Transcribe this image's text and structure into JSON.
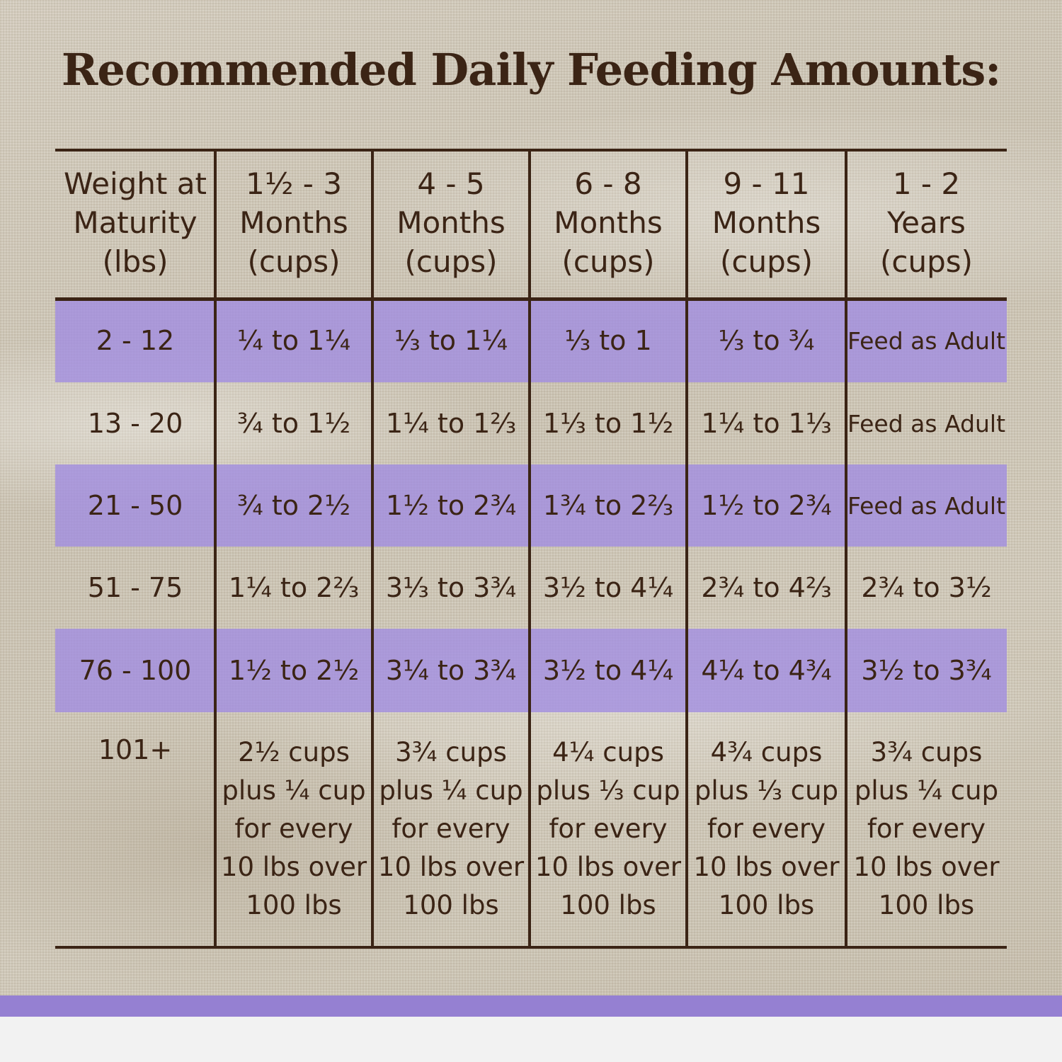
{
  "title": "Recommended Daily Feeding Amounts:",
  "chart_data": {
    "type": "table",
    "columns": [
      "Weight at\nMaturity\n(lbs)",
      "1½ - 3\nMonths\n(cups)",
      "4 - 5\nMonths\n(cups)",
      "6 - 8\nMonths\n(cups)",
      "9 - 11\nMonths\n(cups)",
      "1 - 2\nYears\n(cups)"
    ],
    "rows": [
      [
        "2 - 12",
        "¼ to 1¼",
        "⅓ to 1¼",
        "⅓ to 1",
        "⅓ to ¾",
        "Feed as Adult"
      ],
      [
        "13 - 20",
        "¾ to 1½",
        "1¼ to 1⅔",
        "1⅓ to 1½",
        "1¼ to 1⅓",
        "Feed as Adult"
      ],
      [
        "21 - 50",
        "¾ to 2½",
        "1½ to 2¾",
        "1¾ to 2⅔",
        "1½ to 2¾",
        "Feed as Adult"
      ],
      [
        "51 - 75",
        "1¼ to 2⅔",
        "3⅓ to 3¾",
        "3½ to 4¼",
        "2¾ to 4⅔",
        "2¾ to 3½"
      ],
      [
        "76 - 100",
        "1½ to 2½",
        "3¼ to 3¾",
        "3½ to 4¼",
        "4¼ to 4¾",
        "3½ to 3¾"
      ],
      [
        "101+",
        "2½ cups\nplus ¼ cup\nfor every\n10 lbs over\n100 lbs",
        "3¾ cups\nplus ¼ cup\nfor every\n10 lbs over\n100 lbs",
        "4¼ cups\nplus ⅓ cup\nfor every\n10 lbs over\n100 lbs",
        "4¾ cups\nplus ⅓ cup\nfor every\n10 lbs over\n100 lbs",
        "3¾ cups\nplus ¼ cup\nfor every\n10 lbs over\n100 lbs"
      ]
    ],
    "highlighted_rows": [
      0,
      2,
      4
    ]
  },
  "colors": {
    "text": "#3b2415",
    "highlight": "#a08ce1",
    "accent_bar": "#9580d2"
  }
}
